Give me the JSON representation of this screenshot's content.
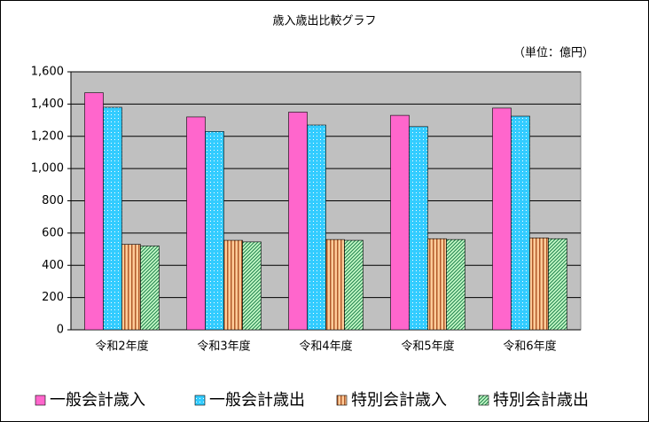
{
  "chart_data": {
    "type": "bar",
    "title": "歳入歳出比較グラフ",
    "unit_label": "（単位：億円）",
    "categories": [
      "令和2年度",
      "令和3年度",
      "令和4年度",
      "令和5年度",
      "令和6年度"
    ],
    "series": [
      {
        "name": "一般会計歳入",
        "color": "#ff66cc",
        "pattern": "solid",
        "values": [
          1470,
          1320,
          1350,
          1330,
          1375
        ]
      },
      {
        "name": "一般会計歳出",
        "color": "#33ccff",
        "pattern": "dots",
        "values": [
          1380,
          1230,
          1270,
          1260,
          1325
        ]
      },
      {
        "name": "特別会計歳入",
        "color": "#ffcc99",
        "pattern": "vertical",
        "values": [
          530,
          555,
          560,
          565,
          570
        ]
      },
      {
        "name": "特別会計歳出",
        "color": "#ccffcc",
        "pattern": "diagonal",
        "values": [
          520,
          545,
          555,
          560,
          565
        ]
      }
    ],
    "ylim": [
      0,
      1600
    ],
    "yticks": [
      0,
      200,
      400,
      600,
      800,
      {
        "value": 1000,
        "label": "1,000"
      },
      {
        "value": 1200,
        "label": "1,200"
      },
      {
        "value": 1400,
        "label": "1,400"
      },
      {
        "value": 1600,
        "label": "1,600"
      }
    ],
    "grid": true,
    "legend": "bottom"
  }
}
